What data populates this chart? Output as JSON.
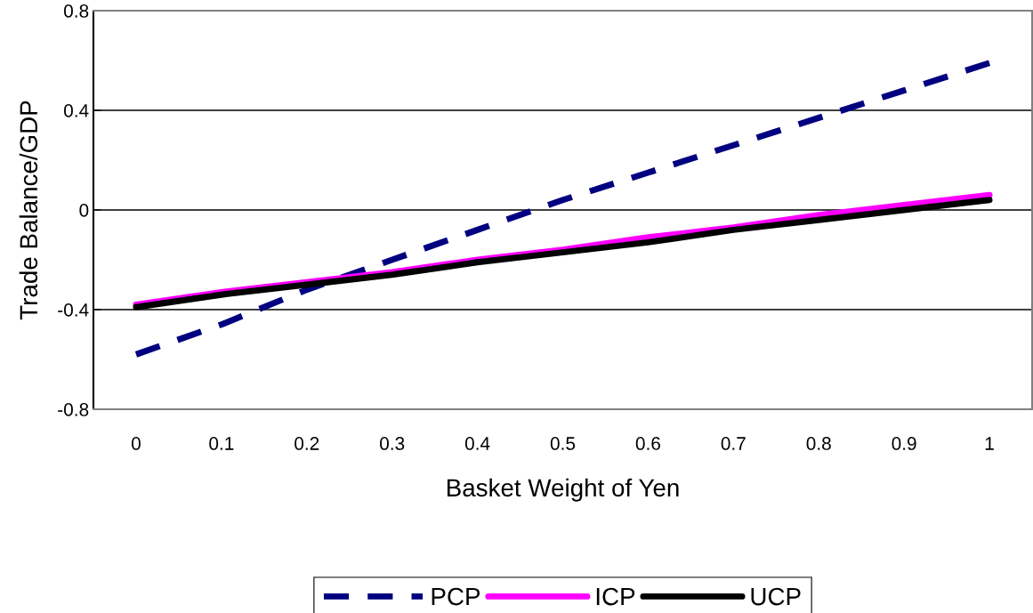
{
  "chart_data": {
    "type": "line",
    "xlabel": "Basket Weight of Yen",
    "ylabel": "Trade Balance/GDP",
    "categories": [
      "0",
      "0.1",
      "0.2",
      "0.3",
      "0.4",
      "0.5",
      "0.6",
      "0.7",
      "0.8",
      "0.9",
      "1"
    ],
    "series": [
      {
        "name": "PCP",
        "color": "#000080",
        "line_style": "dashed",
        "values": [
          -0.58,
          -0.46,
          -0.32,
          -0.2,
          -0.08,
          0.04,
          0.15,
          0.26,
          0.37,
          0.48,
          0.59
        ]
      },
      {
        "name": "ICP",
        "color": "#ff00ff",
        "line_style": "solid",
        "values": [
          -0.38,
          -0.33,
          -0.29,
          -0.25,
          -0.2,
          -0.16,
          -0.11,
          -0.07,
          -0.02,
          0.02,
          0.06
        ]
      },
      {
        "name": "UCP",
        "color": "#000000",
        "line_style": "solid",
        "values": [
          -0.39,
          -0.34,
          -0.3,
          -0.26,
          -0.21,
          -0.17,
          -0.13,
          -0.08,
          -0.04,
          0.0,
          0.04
        ]
      }
    ],
    "ylim": [
      -0.8,
      0.8
    ],
    "yticks": [
      -0.8,
      -0.4,
      0,
      0.4,
      0.8
    ],
    "grid": "y",
    "legend": "bottom",
    "marker": "none"
  }
}
